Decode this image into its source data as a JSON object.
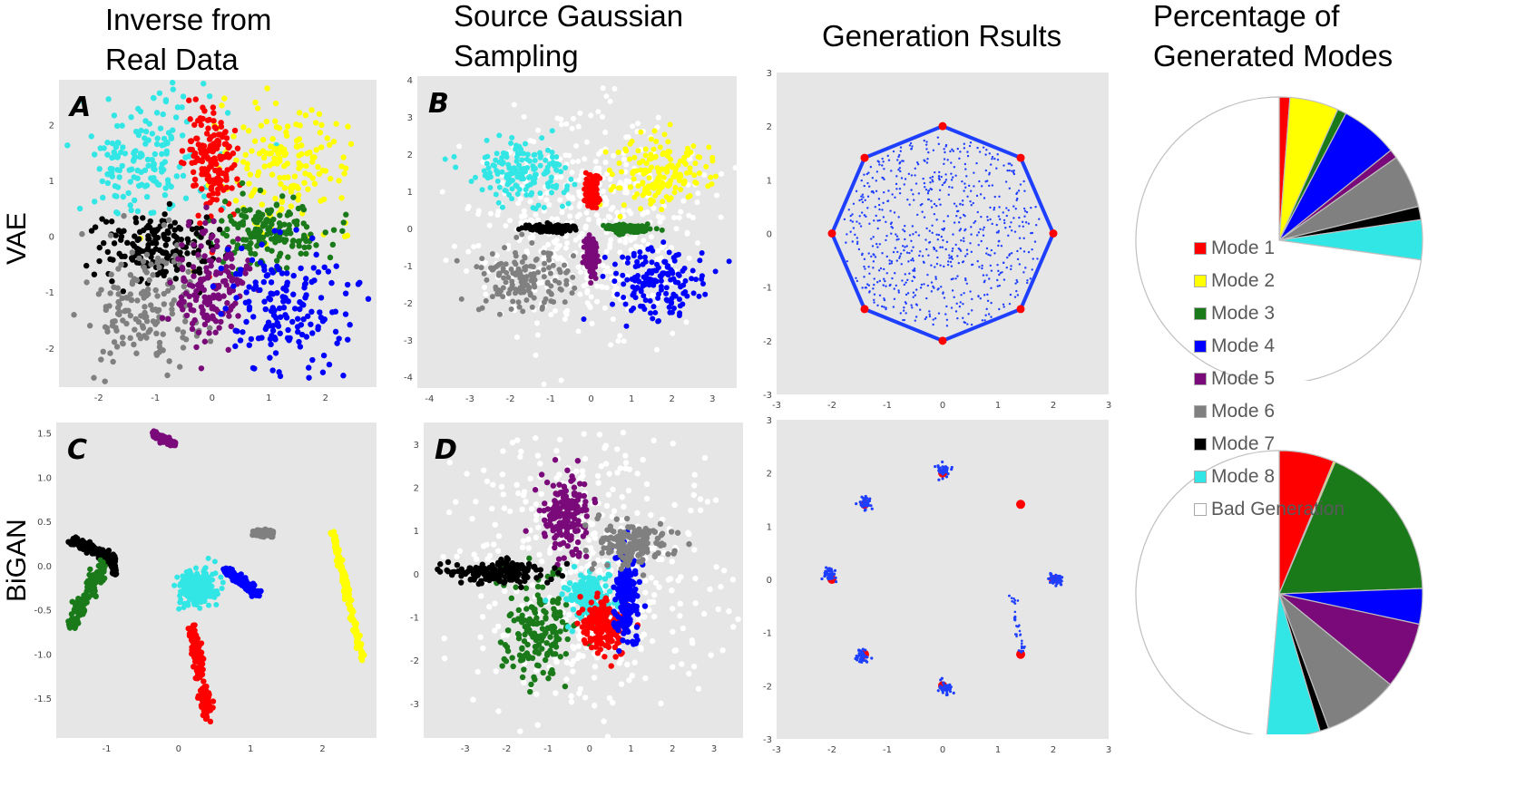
{
  "column_titles": [
    "Inverse from\nReal Data",
    "Source Gaussian\nSampling",
    "Generation Rsults",
    "Percentage of\nGenerated Modes"
  ],
  "row_titles": [
    "VAE",
    "BiGAN"
  ],
  "colors": {
    "mode1": "#ff0000",
    "mode2": "#ffff00",
    "mode3": "#1a7a1a",
    "mode4": "#0000ff",
    "mode5": "#7a0a7a",
    "mode6": "#808080",
    "mode7": "#000000",
    "mode8": "#33e6e6",
    "bad": "#ffffff",
    "plot_bg": "#e6e6e6",
    "generated": "#1f3fff",
    "real": "#ff0000"
  },
  "legend": {
    "items": [
      {
        "label": "Mode 1",
        "color": "#ff0000"
      },
      {
        "label": "Mode 2",
        "color": "#ffff00"
      },
      {
        "label": "Mode 3",
        "color": "#1a7a1a"
      },
      {
        "label": "Mode 4",
        "color": "#0000ff"
      },
      {
        "label": "Mode 5",
        "color": "#7a0a7a"
      },
      {
        "label": "Mode 6",
        "color": "#808080"
      },
      {
        "label": "Mode 7",
        "color": "#000000"
      },
      {
        "label": "Mode 8",
        "color": "#33e6e6"
      },
      {
        "label": "Bad Generation",
        "color": "#ffffff"
      }
    ]
  },
  "chart_data": [
    {
      "id": "A",
      "panel_label": "A",
      "type": "scatter",
      "xlim": [
        -2.7,
        2.9
      ],
      "ylim": [
        -2.7,
        2.8
      ],
      "xticks": [
        -2,
        -1,
        0,
        1,
        2
      ],
      "yticks": [
        -2,
        -1,
        0,
        1,
        2
      ],
      "xtick_labels": [
        "-2",
        "-1",
        "0",
        "1",
        "2"
      ],
      "ytick_labels": [
        "-2",
        "-1",
        "0",
        "1",
        "2"
      ],
      "clusters": [
        {
          "mode": "mode8",
          "cx": -1.2,
          "cy": 1.4,
          "sx": 0.6,
          "sy": 0.6
        },
        {
          "mode": "mode2",
          "cx": 1.3,
          "cy": 1.3,
          "sx": 0.6,
          "sy": 0.55
        },
        {
          "mode": "mode1",
          "cx": 0.0,
          "cy": 1.3,
          "sx": 0.22,
          "sy": 0.5
        },
        {
          "mode": "mode3",
          "cx": 1.0,
          "cy": 0.1,
          "sx": 0.5,
          "sy": 0.3
        },
        {
          "mode": "mode7",
          "cx": -1.0,
          "cy": -0.2,
          "sx": 0.5,
          "sy": 0.3
        },
        {
          "mode": "mode6",
          "cx": -1.2,
          "cy": -1.3,
          "sx": 0.55,
          "sy": 0.55
        },
        {
          "mode": "mode5",
          "cx": 0.0,
          "cy": -0.9,
          "sx": 0.3,
          "sy": 0.5
        },
        {
          "mode": "mode4",
          "cx": 1.3,
          "cy": -1.2,
          "sx": 0.55,
          "sy": 0.6
        }
      ]
    },
    {
      "id": "B",
      "panel_label": "B",
      "type": "scatter",
      "xlim": [
        -4.3,
        3.6
      ],
      "ylim": [
        -4.3,
        4.1
      ],
      "xticks": [
        -4,
        -3,
        -2,
        -1,
        0,
        1,
        2,
        3
      ],
      "yticks": [
        -4,
        -3,
        -2,
        -1,
        0,
        1,
        2,
        3,
        4
      ],
      "xtick_labels": [
        "-4",
        "-3",
        "-2",
        "-1",
        "0",
        "1",
        "2",
        "3"
      ],
      "ytick_labels": [
        "-4",
        "-3",
        "-2",
        "-1",
        "0",
        "1",
        "2",
        "3",
        "4"
      ],
      "clusters": [
        {
          "mode": "bad",
          "cx": 0.0,
          "cy": 0.0,
          "sx": 1.4,
          "sy": 1.4
        },
        {
          "mode": "mode8",
          "cx": -1.7,
          "cy": 1.5,
          "sx": 0.6,
          "sy": 0.45
        },
        {
          "mode": "mode2",
          "cx": 1.6,
          "cy": 1.5,
          "sx": 0.6,
          "sy": 0.45
        },
        {
          "mode": "mode6",
          "cx": -1.7,
          "cy": -1.4,
          "sx": 0.55,
          "sy": 0.45
        },
        {
          "mode": "mode4",
          "cx": 1.6,
          "cy": -1.5,
          "sx": 0.6,
          "sy": 0.5
        },
        {
          "mode": "mode1",
          "cx": 0.0,
          "cy": 1.0,
          "sx": 0.08,
          "sy": 0.25
        },
        {
          "mode": "mode5",
          "cx": 0.0,
          "cy": -0.8,
          "sx": 0.08,
          "sy": 0.22
        },
        {
          "mode": "mode7",
          "cx": -1.0,
          "cy": 0.0,
          "sx": 0.25,
          "sy": 0.05
        },
        {
          "mode": "mode3",
          "cx": 0.9,
          "cy": 0.0,
          "sx": 0.25,
          "sy": 0.05
        }
      ]
    },
    {
      "id": "VAE-gen",
      "type": "scatter",
      "xlim": [
        -3,
        3
      ],
      "ylim": [
        -3,
        3
      ],
      "xticks": [
        -3,
        -2,
        -1,
        0,
        1,
        2,
        3
      ],
      "yticks": [
        -3,
        -2,
        -1,
        0,
        1,
        2,
        3
      ],
      "xtick_labels": [
        "-3",
        "-2",
        "-1",
        "0",
        "1",
        "2",
        "3"
      ],
      "ytick_labels": [
        "-3",
        "-2",
        "-1",
        "0",
        "1",
        "2",
        "3"
      ],
      "real_modes": [
        [
          2,
          0
        ],
        [
          1.41,
          1.41
        ],
        [
          0,
          2
        ],
        [
          -1.41,
          1.41
        ],
        [
          -2,
          0
        ],
        [
          -1.41,
          -1.41
        ],
        [
          0,
          -2
        ],
        [
          1.41,
          -1.41
        ]
      ],
      "generated": "filled octagon"
    },
    {
      "id": "VAE-pie",
      "type": "pie",
      "slices": [
        {
          "mode": "mode1",
          "value": 1.2
        },
        {
          "mode": "mode2",
          "value": 5.5
        },
        {
          "mode": "mode3",
          "value": 1.0
        },
        {
          "mode": "mode4",
          "value": 6.5
        },
        {
          "mode": "mode5",
          "value": 1.0
        },
        {
          "mode": "mode6",
          "value": 6.0
        },
        {
          "mode": "mode7",
          "value": 1.5
        },
        {
          "mode": "mode8",
          "value": 4.5
        },
        {
          "mode": "bad",
          "value": 72.8
        }
      ]
    },
    {
      "id": "C",
      "panel_label": "C",
      "type": "scatter",
      "xlim": [
        -1.7,
        2.75
      ],
      "ylim": [
        -1.95,
        1.62
      ],
      "xticks": [
        -1,
        0,
        1,
        2
      ],
      "yticks": [
        -1.5,
        -1.0,
        -0.5,
        0.0,
        0.5,
        1.0,
        1.5
      ],
      "xtick_labels": [
        "-1",
        "0",
        "1",
        "2"
      ],
      "ytick_labels": [
        "-1.5",
        "-1.0",
        "-0.5",
        "0.0",
        "0.5",
        "1.0",
        "1.5"
      ],
      "segments": [
        {
          "mode": "mode5",
          "x1": -0.35,
          "y1": 1.5,
          "x2": -0.05,
          "y2": 1.37,
          "w": 0.05
        },
        {
          "mode": "mode7",
          "x1": -1.5,
          "y1": 0.28,
          "x2": -0.9,
          "y2": 0.08,
          "w": 0.07
        },
        {
          "mode": "mode7",
          "x1": -0.95,
          "y1": 0.1,
          "x2": -0.88,
          "y2": -0.08,
          "w": 0.04
        },
        {
          "mode": "mode3",
          "x1": -1.05,
          "y1": 0.0,
          "x2": -1.5,
          "y2": -0.7,
          "w": 0.12
        },
        {
          "mode": "mode6",
          "x1": 1.05,
          "y1": 0.37,
          "x2": 1.3,
          "y2": 0.37,
          "w": 0.05
        },
        {
          "mode": "mode4",
          "x1": 0.65,
          "y1": -0.05,
          "x2": 1.08,
          "y2": -0.32,
          "w": 0.07
        },
        {
          "mode": "mode2",
          "x1": 2.15,
          "y1": 0.38,
          "x2": 2.55,
          "y2": -1.05,
          "w": 0.07
        },
        {
          "mode": "mode1",
          "x1": 0.18,
          "y1": -0.7,
          "x2": 0.42,
          "y2": -1.75,
          "w": 0.11
        }
      ],
      "blobs": [
        {
          "mode": "mode8",
          "cx": 0.27,
          "cy": -0.25,
          "sx": 0.2,
          "sy": 0.17
        }
      ]
    },
    {
      "id": "D",
      "panel_label": "D",
      "type": "scatter",
      "xlim": [
        -4.0,
        3.7
      ],
      "ylim": [
        -3.8,
        3.5
      ],
      "xticks": [
        -3,
        -2,
        -1,
        0,
        1,
        2,
        3
      ],
      "yticks": [
        -3,
        -2,
        -1,
        0,
        1,
        2,
        3
      ],
      "xtick_labels": [
        "-3",
        "-2",
        "-1",
        "0",
        "1",
        "2",
        "3"
      ],
      "ytick_labels": [
        "-3",
        "-2",
        "-1",
        "0",
        "1",
        "2",
        "3"
      ],
      "clusters": [
        {
          "mode": "bad",
          "cx": 0.0,
          "cy": 0.0,
          "sx": 1.45,
          "sy": 1.45
        },
        {
          "mode": "mode3",
          "cx": -1.2,
          "cy": -1.3,
          "sx": 0.45,
          "sy": 0.6
        },
        {
          "mode": "mode8",
          "cx": 0.0,
          "cy": -0.5,
          "sx": 0.25,
          "sy": 0.3
        },
        {
          "mode": "mode1",
          "cx": 0.3,
          "cy": -1.2,
          "sx": 0.28,
          "sy": 0.3
        },
        {
          "mode": "mode4",
          "cx": 0.9,
          "cy": -0.6,
          "sx": 0.15,
          "sy": 0.5
        },
        {
          "mode": "mode5",
          "cx": -0.6,
          "cy": 1.4,
          "sx": 0.28,
          "sy": 0.45
        },
        {
          "mode": "mode6",
          "cx": 0.9,
          "cy": 0.7,
          "sx": 0.45,
          "sy": 0.28
        },
        {
          "mode": "mode7",
          "cx": -2.3,
          "cy": 0.05,
          "sx": 0.55,
          "sy": 0.12
        }
      ]
    },
    {
      "id": "BiGAN-gen",
      "type": "scatter",
      "xlim": [
        -3,
        3
      ],
      "ylim": [
        -3,
        3
      ],
      "xticks": [
        -3,
        -2,
        -1,
        0,
        1,
        2,
        3
      ],
      "yticks": [
        -3,
        -2,
        -1,
        0,
        1,
        2,
        3
      ],
      "xtick_labels": [
        "-3",
        "-2",
        "-1",
        "0",
        "1",
        "2",
        "3"
      ],
      "ytick_labels": [
        "-3",
        "-2",
        "-1",
        "0",
        "1",
        "2",
        "3"
      ],
      "real_modes": [
        [
          2,
          0
        ],
        [
          1.41,
          1.41
        ],
        [
          0,
          2
        ],
        [
          -1.41,
          1.41
        ],
        [
          -2,
          0
        ],
        [
          -1.41,
          -1.41
        ],
        [
          0,
          -2
        ],
        [
          1.41,
          -1.41
        ]
      ],
      "generated_clusters": [
        [
          0,
          2.05
        ],
        [
          -1.4,
          1.45
        ],
        [
          -2.05,
          0.1
        ],
        [
          -1.45,
          -1.45
        ],
        [
          0.05,
          -2.05
        ],
        [
          2.05,
          0.0
        ]
      ],
      "generated_streak": [
        [
          1.25,
          -0.3
        ],
        [
          1.45,
          -1.4
        ]
      ]
    },
    {
      "id": "BiGAN-pie",
      "type": "pie",
      "slices": [
        {
          "mode": "mode1",
          "value": 6.2
        },
        {
          "mode": "mode2",
          "value": 0.2
        },
        {
          "mode": "mode3",
          "value": 18.0
        },
        {
          "mode": "mode4",
          "value": 4.0
        },
        {
          "mode": "mode5",
          "value": 7.5
        },
        {
          "mode": "mode6",
          "value": 8.5
        },
        {
          "mode": "mode7",
          "value": 1.0
        },
        {
          "mode": "mode8",
          "value": 6.0
        },
        {
          "mode": "bad",
          "value": 48.6
        }
      ]
    }
  ]
}
